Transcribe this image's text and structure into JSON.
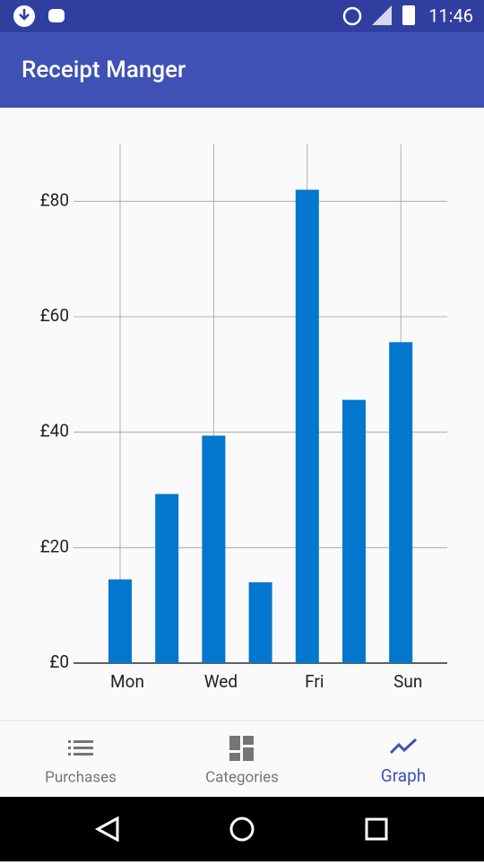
{
  "status_bar": {
    "time": "11:46"
  },
  "app_bar": {
    "title": "Receipt Manger"
  },
  "chart_data": {
    "type": "bar",
    "categories": [
      "Mon",
      null,
      "Wed",
      null,
      "Fri",
      null,
      "Sun"
    ],
    "values": [
      14.5,
      29.3,
      39.4,
      14.0,
      82.0,
      45.6,
      55.6
    ],
    "color": "#0377cd",
    "ylim": [
      0,
      90
    ],
    "yticks": [
      {
        "value": 0,
        "label": "£0"
      },
      {
        "value": 20,
        "label": "£20"
      },
      {
        "value": 40,
        "label": "£40"
      },
      {
        "value": 60,
        "label": "£60"
      },
      {
        "value": 80,
        "label": "£80"
      }
    ],
    "grid": true
  },
  "bottom_nav": {
    "items": [
      "Purchases",
      "Categories",
      "Graph"
    ]
  }
}
